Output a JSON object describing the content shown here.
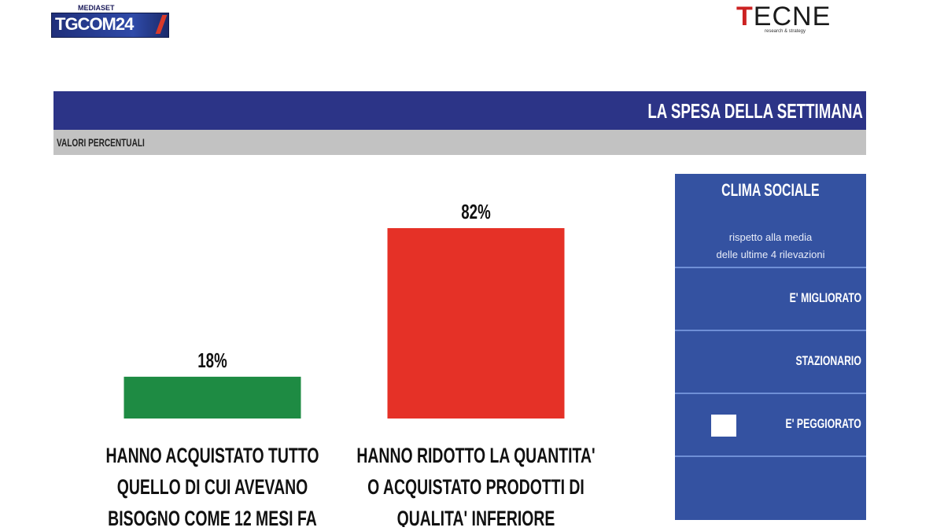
{
  "logos": {
    "left": {
      "top_text": "MEDIASET",
      "main_text": "TGCOM24"
    },
    "right": {
      "main_text": "TECNE",
      "sub_text": "research & strategy"
    }
  },
  "header": {
    "title": "LA SPESA DELLA SETTIMANA",
    "subtitle": "VALORI PERCENTUALI",
    "band_color": "#2c3487",
    "subband_color": "#c2c2c2"
  },
  "chart_data": {
    "type": "bar",
    "title": "LA SPESA DELLA SETTIMANA",
    "subtitle": "VALORI PERCENTUALI",
    "categories": [
      [
        "HANNO ACQUISTATO TUTTO",
        "QUELLO DI CUI AVEVANO",
        "BISOGNO COME 12 MESI FA"
      ],
      [
        "HANNO RIDOTTO LA QUANTITA'",
        "O ACQUISTATO PRODOTTI DI",
        "QUALITA' INFERIORE"
      ]
    ],
    "values": [
      18,
      82
    ],
    "value_labels": [
      "18%",
      "82%"
    ],
    "colors": [
      "#1e8b43",
      "#e53127"
    ],
    "unit": "%",
    "ylim": [
      0,
      82
    ],
    "grid": false,
    "axis_visible": false
  },
  "clima_sociale": {
    "title": "CLIMA SOCIALE",
    "description_lines": [
      "rispetto alla media",
      "delle ultime 4 rilevazioni"
    ],
    "rows": [
      {
        "label": "E' MIGLIORATO",
        "selected": false
      },
      {
        "label": "STAZIONARIO",
        "selected": false
      },
      {
        "label": "E' PEGGIORATO",
        "selected": true
      }
    ],
    "panel_color": "#3452a1"
  }
}
